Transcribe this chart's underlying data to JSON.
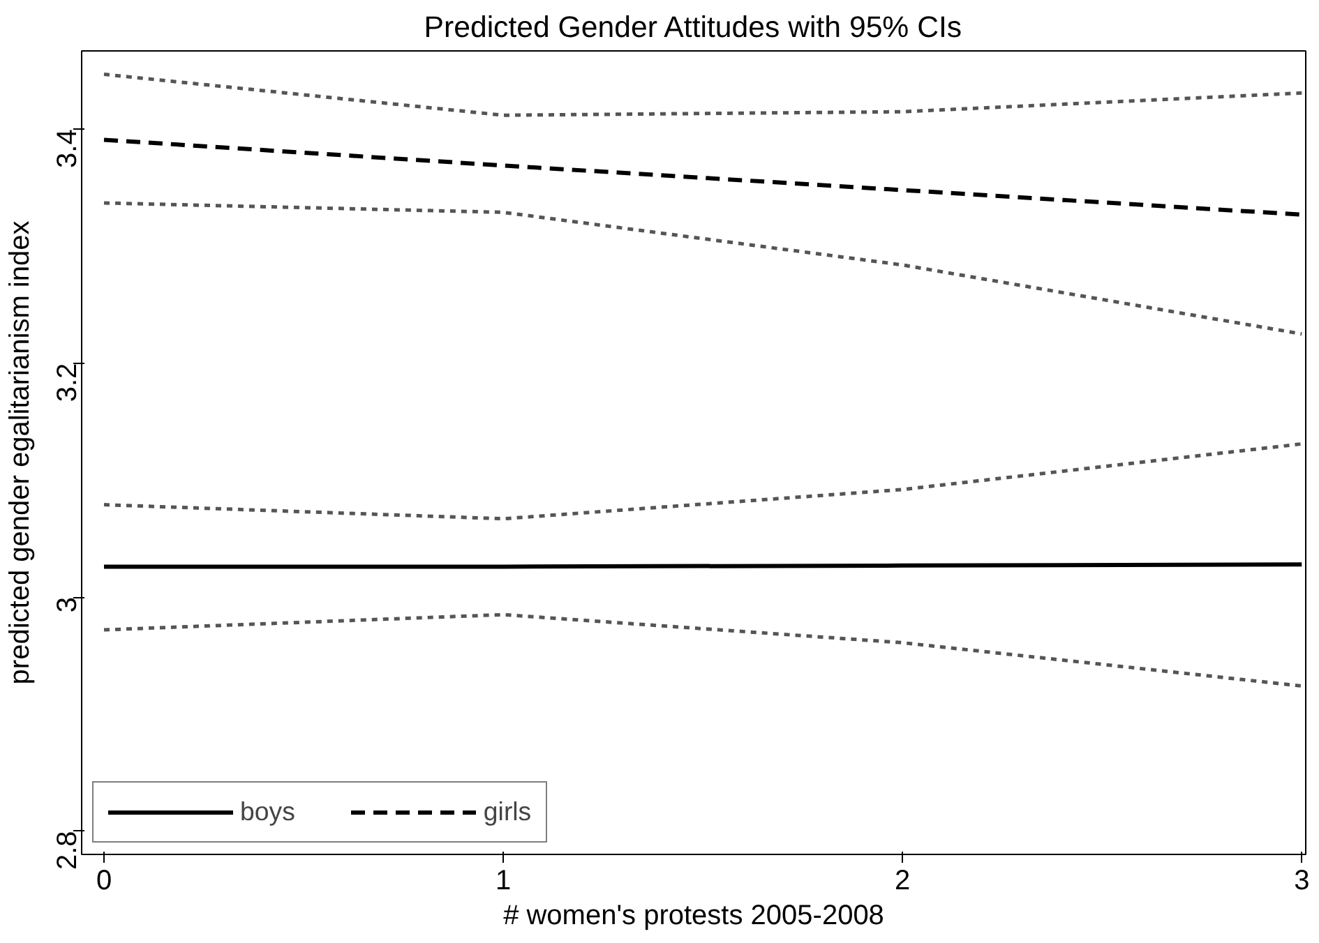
{
  "chart_data": {
    "type": "line",
    "title": "Predicted Gender Attitudes with 95% CIs",
    "xlabel": "# women's protests 2005-2008",
    "ylabel": "predicted gender egalitarianism index",
    "x": [
      0,
      1,
      2,
      3
    ],
    "series": [
      {
        "name": "boys",
        "color": "#000000",
        "line_style": "solid",
        "values": [
          3.026,
          3.026,
          3.027,
          3.028
        ]
      },
      {
        "name": "girls",
        "color": "#000000",
        "line_style": "dashed",
        "values": [
          3.391,
          3.369,
          3.348,
          3.327
        ]
      },
      {
        "color": "#555555",
        "line_style": "dotted",
        "values": [
          2.972,
          2.985,
          2.961,
          2.924
        ]
      },
      {
        "color": "#555555",
        "line_style": "dotted",
        "values": [
          3.079,
          3.067,
          3.092,
          3.131
        ]
      },
      {
        "color": "#555555",
        "line_style": "dotted",
        "values": [
          3.337,
          3.329,
          3.284,
          3.225
        ]
      },
      {
        "color": "#555555",
        "line_style": "dotted",
        "values": [
          3.447,
          3.412,
          3.415,
          3.431
        ]
      }
    ],
    "xlim": [
      -0.056,
      3.01
    ],
    "ylim": [
      2.78,
      3.467
    ],
    "xticks": [
      0,
      1,
      2,
      3
    ],
    "yticks": [
      2.8,
      3,
      3.2,
      3.4
    ],
    "grid": false,
    "legend": "bottom left",
    "marker": "none"
  }
}
